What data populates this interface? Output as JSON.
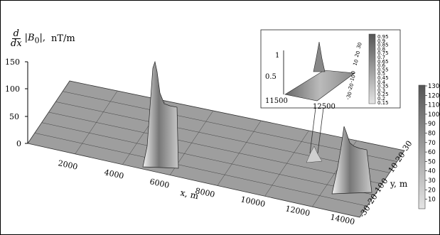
{
  "chart_data": [
    {
      "type": "surface",
      "z_label": {
        "numerator": "d",
        "denominator": "dx",
        "expression": "|B",
        "subscript": "0",
        "close": "|,",
        "unit": "nT/m"
      },
      "x_label": "x, m",
      "y_label": "y, m",
      "xlim": [
        0,
        14500
      ],
      "ylim": [
        -30,
        30
      ],
      "zlim": [
        0,
        150
      ],
      "x_ticks": [
        "2000",
        "4000",
        "6000",
        "8000",
        "10000",
        "12000",
        "14000"
      ],
      "y_ticks": [
        "-30",
        "-20",
        "-10",
        "0",
        "10",
        "20",
        "30"
      ],
      "z_ticks": [
        "0",
        "50",
        "100",
        "150"
      ],
      "peaks": [
        {
          "x": 5000,
          "y": 0,
          "z": 130
        },
        {
          "x": 12250,
          "y": 0,
          "z": 45
        },
        {
          "x": 13800,
          "y": 0,
          "z": 40
        }
      ],
      "colorbar": {
        "min": 10,
        "max": 130,
        "ticks": [
          "130",
          "120",
          "110",
          "100",
          "90",
          "80",
          "70",
          "60",
          "50",
          "40",
          "30",
          "20",
          "10"
        ]
      }
    },
    {
      "type": "surface",
      "inset": true,
      "xlim": [
        11500,
        12500
      ],
      "zlim": [
        0.1,
        1.0
      ],
      "x_ticks": [
        "11500",
        "12500"
      ],
      "y_ticks": [
        "-30",
        "-20",
        "-10",
        "0",
        "10",
        "20",
        "30"
      ],
      "z_ticks": [
        "0.5",
        "1"
      ],
      "peaks": [
        {
          "x": 12250,
          "y": 0,
          "z": 1.0
        }
      ],
      "colorbar": {
        "min": 0.15,
        "max": 0.95,
        "ticks": [
          "0.95",
          "0.9",
          "0.85",
          "0.8",
          "0.75",
          "0.7",
          "0.65",
          "0.6",
          "0.55",
          "0.5",
          "0.45",
          "0.4",
          "0.35",
          "0.3",
          "0.25",
          "0.2",
          "0.15"
        ]
      }
    }
  ]
}
